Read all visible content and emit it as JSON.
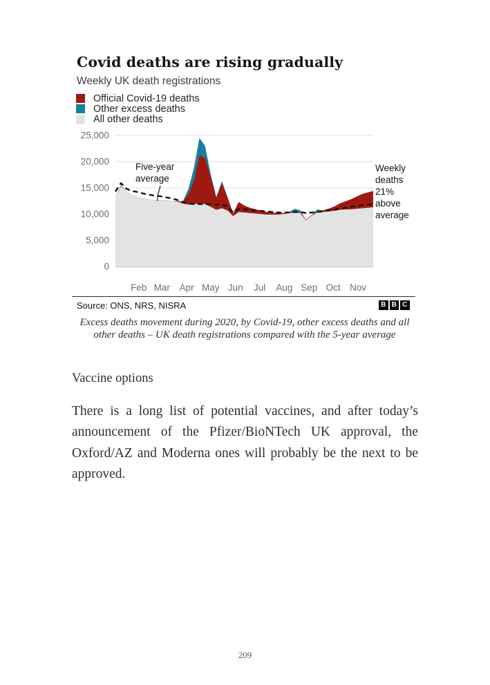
{
  "page": {
    "number": "209"
  },
  "figure": {
    "title": "Covid deaths are rising gradually",
    "subtitle": "Weekly UK death registrations",
    "legend": [
      {
        "label": "Official Covid-19 deaths",
        "color": "#9e1a10"
      },
      {
        "label": "Other excess deaths",
        "color": "#17809e"
      },
      {
        "label": "All other deaths",
        "color": "#e3e3e3"
      }
    ],
    "annotations": {
      "left_lines": [
        "Five-year",
        "average"
      ],
      "right_lines": [
        "Weekly",
        "deaths",
        "21%",
        "above",
        "average"
      ]
    },
    "source": "Source: ONS, NRS, NISRA",
    "logo_letters": [
      "B",
      "B",
      "C"
    ],
    "caption": "Excess deaths movement during 2020, by Covid-19, other excess deaths and all other deaths – UK death registrations compared with the 5-year average"
  },
  "chart_data": {
    "type": "area",
    "stacked": true,
    "title": "Covid deaths are rising gradually",
    "subtitle": "Weekly UK death registrations",
    "xlabel": "",
    "ylabel": "",
    "ylim": [
      0,
      25000
    ],
    "yticks": [
      0,
      5000,
      10000,
      15000,
      20000,
      25000
    ],
    "grid": true,
    "legend_position": "top-left",
    "xticks_months": [
      "Feb",
      "Mar",
      "Apr",
      "May",
      "Jun",
      "Jul",
      "Aug",
      "Sep",
      "Oct",
      "Nov"
    ],
    "x": [
      "2020-01-03",
      "2020-01-10",
      "2020-01-17",
      "2020-01-24",
      "2020-01-31",
      "2020-02-07",
      "2020-02-14",
      "2020-02-21",
      "2020-02-28",
      "2020-03-06",
      "2020-03-13",
      "2020-03-20",
      "2020-03-27",
      "2020-04-03",
      "2020-04-10",
      "2020-04-17",
      "2020-04-24",
      "2020-05-01",
      "2020-05-08",
      "2020-05-15",
      "2020-05-22",
      "2020-05-29",
      "2020-06-05",
      "2020-06-12",
      "2020-06-19",
      "2020-06-26",
      "2020-07-03",
      "2020-07-10",
      "2020-07-17",
      "2020-07-24",
      "2020-07-31",
      "2020-08-07",
      "2020-08-14",
      "2020-08-21",
      "2020-08-28",
      "2020-09-04",
      "2020-09-11",
      "2020-09-18",
      "2020-09-25",
      "2020-10-02",
      "2020-10-09",
      "2020-10-16",
      "2020-10-23",
      "2020-10-30",
      "2020-11-06",
      "2020-11-13",
      "2020-11-20"
    ],
    "series": [
      {
        "name": "All other deaths",
        "color": "#e3e3e3",
        "values": [
          13400,
          15300,
          14200,
          13600,
          13200,
          13000,
          12800,
          12600,
          12600,
          12600,
          12500,
          12400,
          12000,
          11800,
          11900,
          12000,
          11900,
          11400,
          10800,
          11100,
          10700,
          9600,
          10400,
          10300,
          10200,
          10100,
          10000,
          9900,
          9900,
          9900,
          10000,
          10200,
          10300,
          10200,
          8800,
          9700,
          10300,
          10400,
          10500,
          10600,
          10800,
          10900,
          10900,
          11000,
          11100,
          11200,
          11300
        ]
      },
      {
        "name": "Official Covid-19 deaths",
        "color": "#9e1a10",
        "values": [
          0,
          0,
          0,
          0,
          0,
          0,
          0,
          0,
          0,
          0,
          0,
          100,
          300,
          2000,
          4400,
          9200,
          8800,
          5700,
          2400,
          4800,
          2500,
          500,
          1900,
          1300,
          1000,
          800,
          700,
          500,
          400,
          300,
          200,
          200,
          200,
          100,
          100,
          100,
          200,
          300,
          500,
          800,
          1200,
          1500,
          1900,
          2300,
          2700,
          2900,
          3100
        ]
      },
      {
        "name": "Other excess deaths",
        "color": "#17809e",
        "values": [
          0,
          200,
          0,
          0,
          0,
          0,
          0,
          0,
          0,
          0,
          0,
          0,
          0,
          900,
          2400,
          3300,
          2300,
          500,
          0,
          400,
          0,
          0,
          0,
          0,
          0,
          0,
          0,
          0,
          0,
          0,
          0,
          0,
          500,
          400,
          0,
          0,
          400,
          0,
          0,
          0,
          0,
          0,
          0,
          0,
          0,
          0,
          0
        ]
      }
    ],
    "line_series": {
      "name": "Five-year average",
      "style": "dashed",
      "color": "#121212",
      "values": [
        14300,
        15900,
        14800,
        14400,
        14200,
        13900,
        13700,
        13500,
        13400,
        13200,
        13000,
        12700,
        12300,
        12000,
        11900,
        11900,
        11900,
        11900,
        11800,
        11800,
        11500,
        10300,
        11000,
        10900,
        10800,
        10700,
        10600,
        10500,
        10400,
        10300,
        10300,
        10300,
        10400,
        10400,
        10200,
        10300,
        10400,
        10500,
        10700,
        10800,
        11000,
        11200,
        11400,
        11500,
        11700,
        11800,
        11900
      ]
    },
    "annotations": [
      "Five-year average",
      "Weekly deaths 21% above average"
    ]
  },
  "section": {
    "heading": "Vaccine options",
    "paragraph": "There is a long list of potential vaccines, and after today’s announcement of the Pfizer/BioNTech UK approval, the Oxford/AZ and Moderna ones will probably be the next to be approved."
  }
}
